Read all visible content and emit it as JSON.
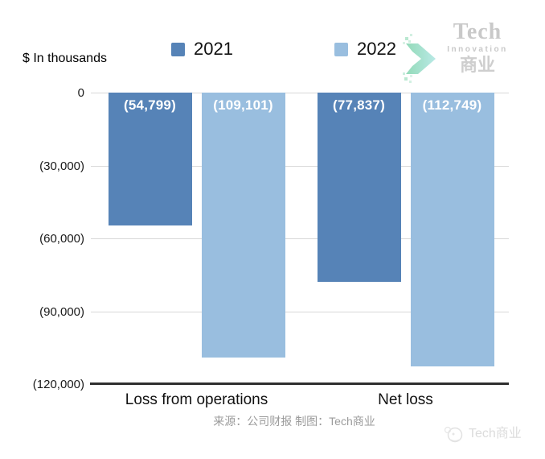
{
  "header": {
    "units_label": "$ In thousands"
  },
  "brand": {
    "line1": "Tech",
    "line2": "Innovation",
    "line3": "商业"
  },
  "chart_data": {
    "type": "bar",
    "orientation": "vertical",
    "categories": [
      "Loss from operations",
      "Net loss"
    ],
    "series": [
      {
        "name": "2021",
        "color": "#5683b7",
        "values": [
          -54799,
          -77837
        ],
        "value_labels": [
          "(54,799)",
          "(77,837)"
        ]
      },
      {
        "name": "2022",
        "color": "#99bedf",
        "values": [
          -109101,
          -112749
        ],
        "value_labels": [
          "(109,101)",
          "(112,749)"
        ]
      }
    ],
    "title": "",
    "xlabel": "",
    "ylabel": "$ In thousands",
    "ylim": [
      -120000,
      0
    ],
    "yticks": [
      {
        "value": 0,
        "label": "0"
      },
      {
        "value": -30000,
        "label": "(30,000)"
      },
      {
        "value": -60000,
        "label": "(60,000)"
      },
      {
        "value": -90000,
        "label": "(90,000)"
      },
      {
        "value": -120000,
        "label": "(120,000)"
      }
    ],
    "grid": true,
    "legend_position": "top",
    "value_label_color": "#ffffff"
  },
  "footer": {
    "credit": "来源：公司财报 制图：Tech商业"
  },
  "watermark": {
    "text": "Tech商业"
  }
}
